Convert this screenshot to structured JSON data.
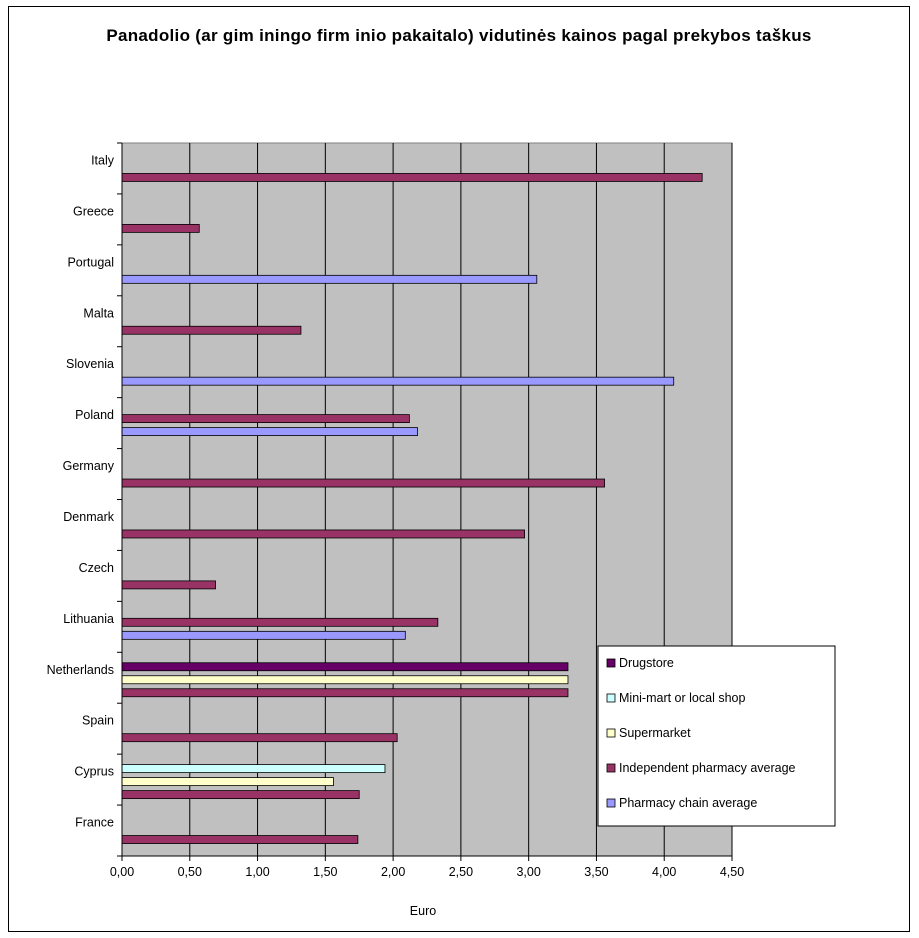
{
  "chart_data": {
    "type": "bar",
    "orientation": "horizontal",
    "title": "Panadolio (ar gim iningo firm inio pakaitalo) vidutinės kainos pagal prekybos taškus",
    "xlabel": "Euro",
    "ylabel": "",
    "xlim": [
      0,
      4.5
    ],
    "x_ticks": [
      "0,00",
      "0,50",
      "1,00",
      "1,50",
      "2,00",
      "2,50",
      "3,00",
      "3,50",
      "4,00",
      "4,50"
    ],
    "grid": "vertical",
    "plot_background": "#c0c0c0",
    "legend_position": "bottom-right",
    "categories": [
      "France",
      "Cyprus",
      "Spain",
      "Netherlands",
      "Lithuania",
      "Czech",
      "Denmark",
      "Germany",
      "Poland",
      "Slovenia",
      "Malta",
      "Portugal",
      "Greece",
      "Italy"
    ],
    "series": [
      {
        "name": "Drugstore",
        "color": "#660066",
        "values": [
          null,
          null,
          null,
          3.29,
          null,
          null,
          null,
          null,
          null,
          null,
          null,
          null,
          null,
          null
        ]
      },
      {
        "name": "Mini-mart or local shop",
        "color": "#ccffff",
        "values": [
          null,
          1.94,
          null,
          null,
          null,
          null,
          null,
          null,
          null,
          null,
          null,
          null,
          null,
          null
        ]
      },
      {
        "name": "Supermarket",
        "color": "#ffffcc",
        "values": [
          null,
          1.56,
          null,
          3.29,
          null,
          null,
          null,
          null,
          null,
          null,
          null,
          null,
          null,
          null
        ]
      },
      {
        "name": "Independent pharmacy average",
        "color": "#993366",
        "values": [
          1.74,
          1.75,
          2.03,
          3.29,
          2.33,
          0.69,
          2.97,
          3.56,
          2.12,
          null,
          1.32,
          null,
          0.57,
          4.28
        ]
      },
      {
        "name": "Pharmacy chain average",
        "color": "#9999ff",
        "values": [
          null,
          null,
          null,
          null,
          2.09,
          null,
          null,
          null,
          2.18,
          4.07,
          null,
          3.06,
          null,
          null
        ]
      }
    ]
  }
}
